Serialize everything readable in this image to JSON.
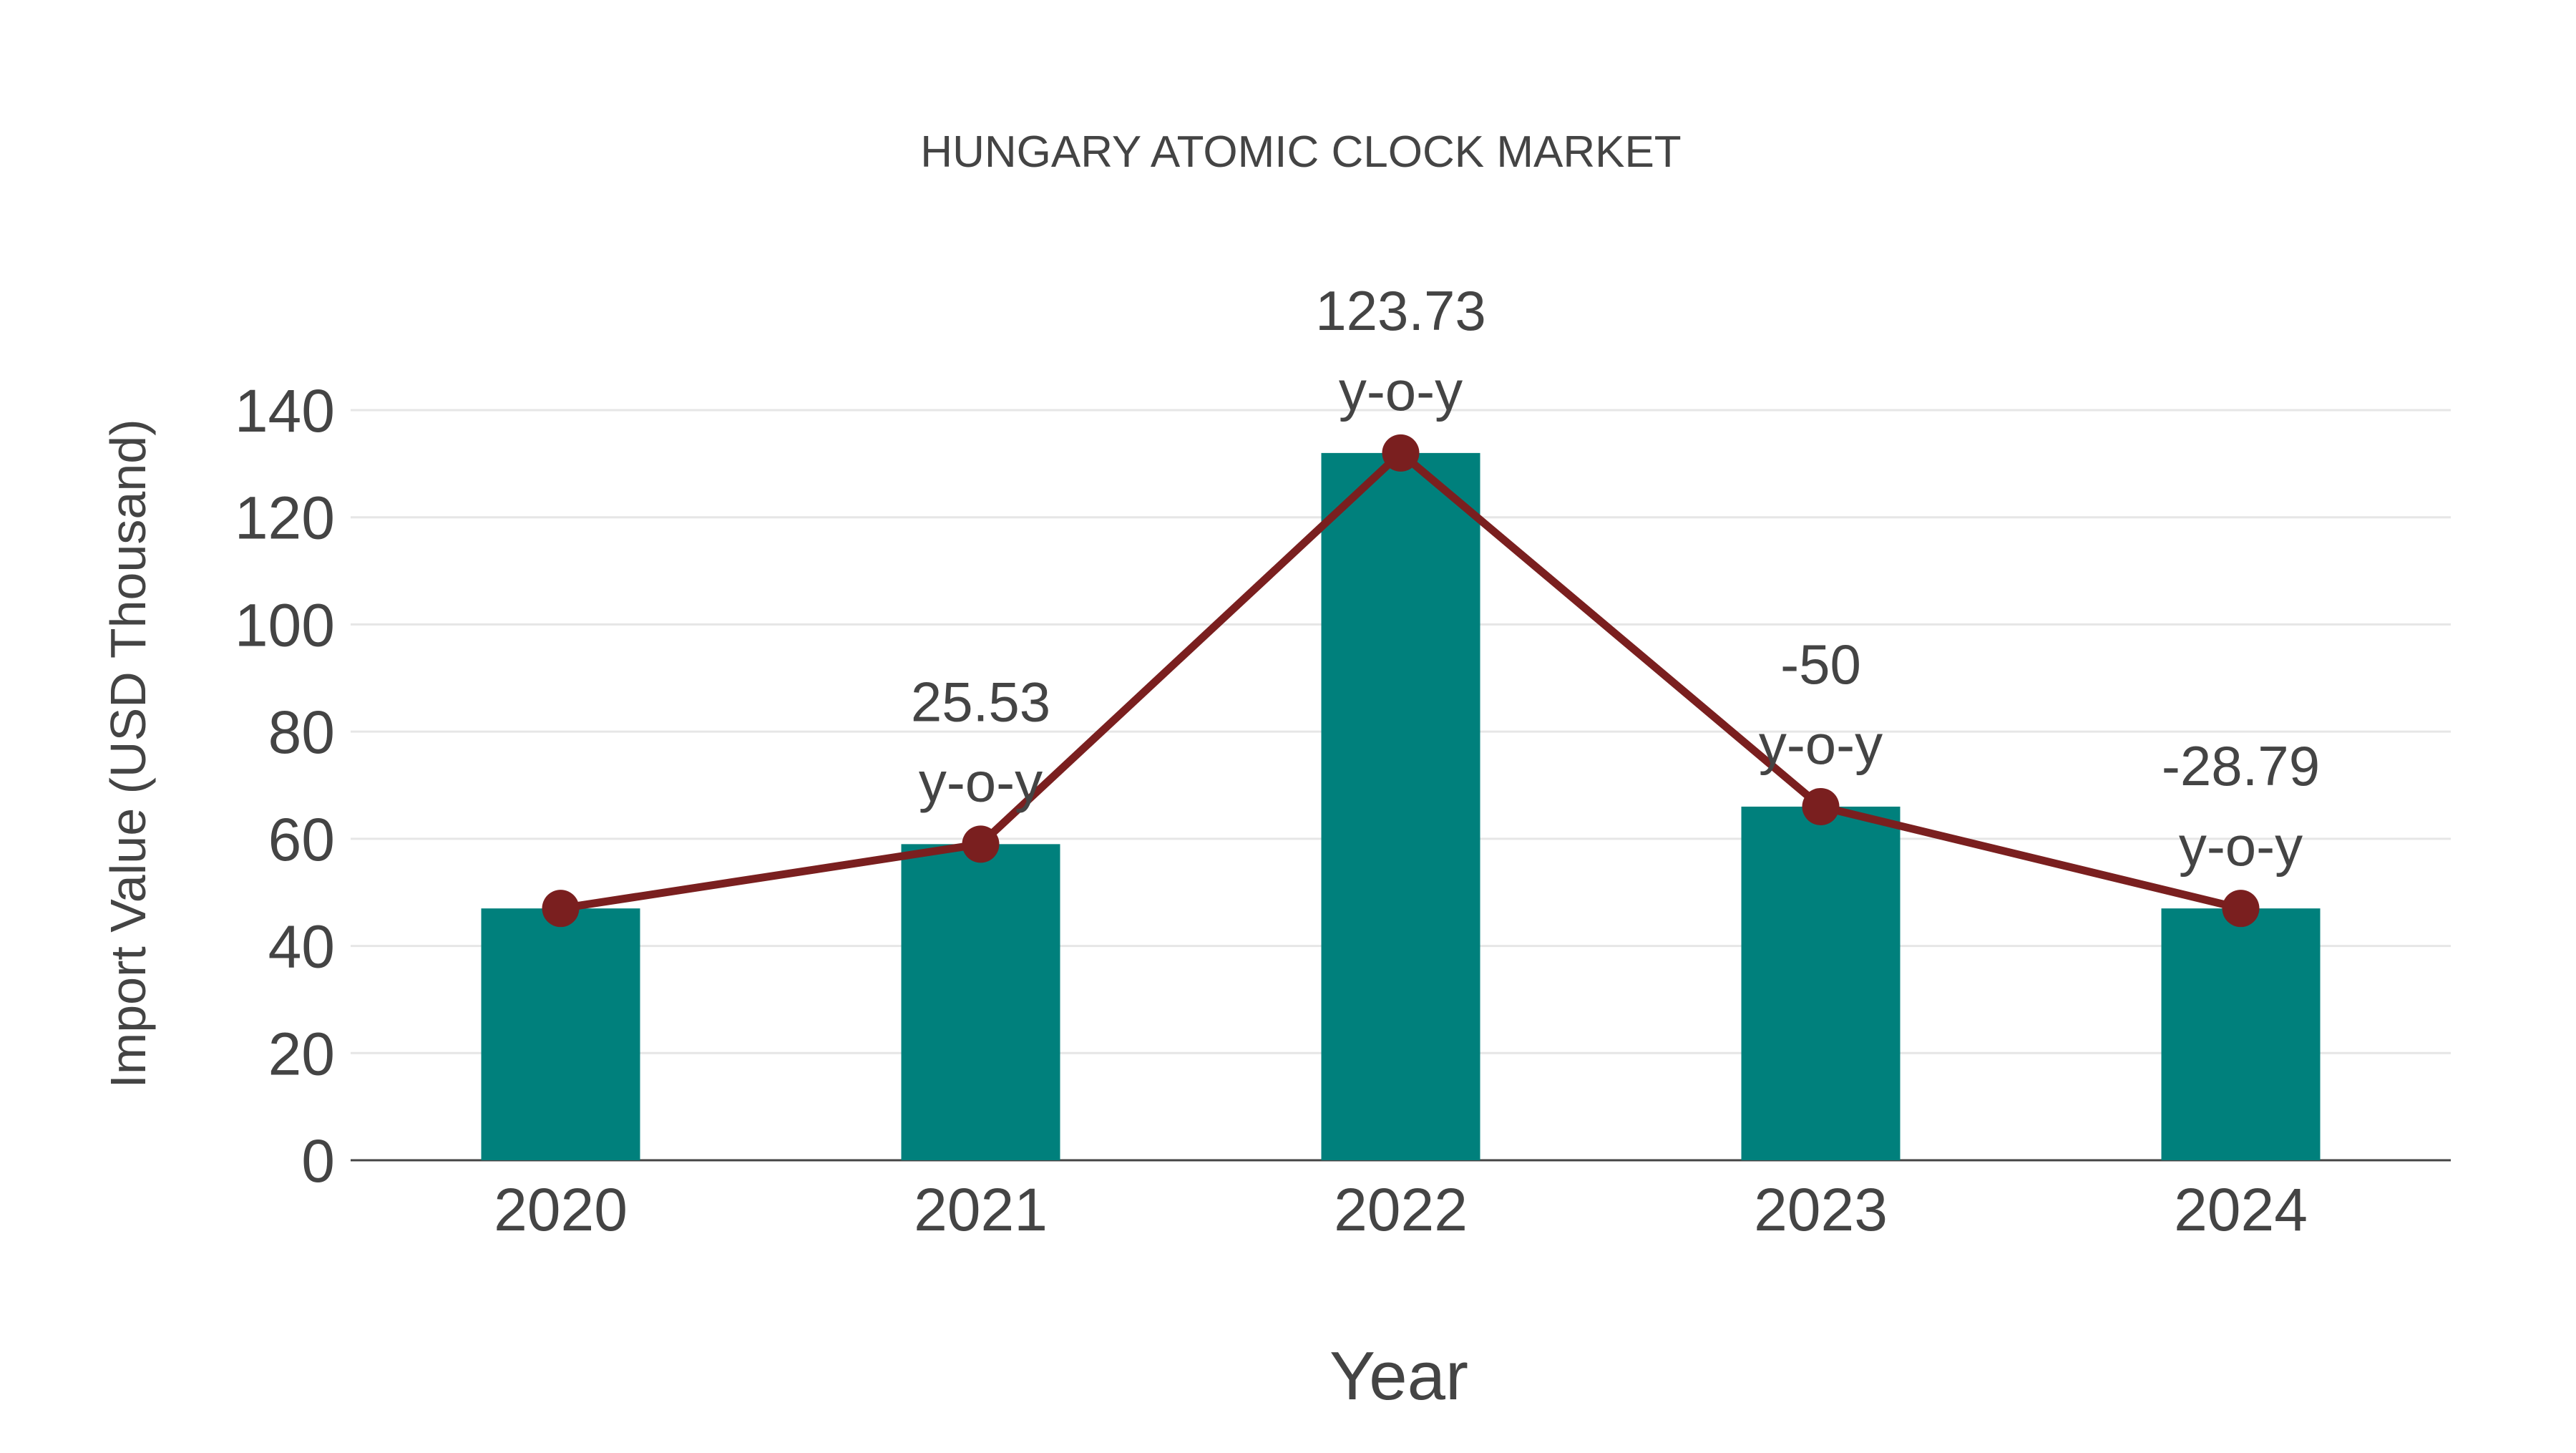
{
  "chart_data": {
    "type": "bar",
    "title": "HUNGARY ATOMIC CLOCK MARKET",
    "xlabel": "Year",
    "ylabel": "Import Value (USD Thousand)",
    "categories": [
      "2020",
      "2021",
      "2022",
      "2023",
      "2024"
    ],
    "series": [
      {
        "name": "Import Value",
        "type": "bar",
        "color": "#00807c",
        "values": [
          47.0,
          59.0,
          132.0,
          66.0,
          47.0
        ]
      },
      {
        "name": "Import Value (line)",
        "type": "line",
        "color": "#7a1f1f",
        "values": [
          47.0,
          59.0,
          132.0,
          66.0,
          47.0
        ]
      }
    ],
    "annotations": [
      {
        "category": "2021",
        "value": "25.53",
        "suffix": "y-o-y"
      },
      {
        "category": "2022",
        "value": "123.73",
        "suffix": "y-o-y"
      },
      {
        "category": "2023",
        "value": "-50",
        "suffix": "y-o-y"
      },
      {
        "category": "2024",
        "value": "-28.79",
        "suffix": "y-o-y"
      }
    ],
    "ylim": [
      0,
      140
    ],
    "yticks": [
      0,
      20,
      40,
      60,
      80,
      100,
      120,
      140
    ],
    "grid": true,
    "legend": "none"
  }
}
